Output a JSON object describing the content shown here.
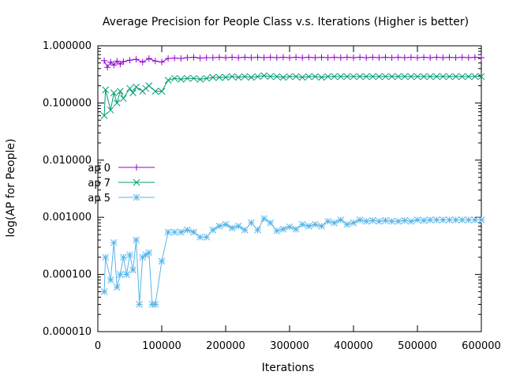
{
  "chart_data": {
    "type": "line",
    "title": "Average Precision for People Class v.s. Iterations (Higher is better)",
    "xlabel": "Iterations",
    "ylabel": "log(AP for People)",
    "xlim": [
      0,
      600000
    ],
    "ylim": [
      1e-05,
      1.0
    ],
    "yscale": "log",
    "x_ticks": [
      0,
      100000,
      200000,
      300000,
      400000,
      500000,
      600000
    ],
    "x_tick_labels": [
      "0",
      "100000",
      "200000",
      "300000",
      "400000",
      "500000",
      "600000"
    ],
    "y_ticks": [
      1e-05,
      0.0001,
      0.001,
      0.01,
      0.1,
      1.0
    ],
    "y_tick_labels": [
      "0.000010",
      "0.000100",
      "0.001000",
      "0.010000",
      "0.100000",
      "1.000000"
    ],
    "grid": false,
    "legend_position": "left-middle",
    "series": [
      {
        "name": "ap 0",
        "color": "#9400d3",
        "marker": "plus",
        "x": [
          10000,
          15000,
          20000,
          25000,
          30000,
          35000,
          40000,
          50000,
          60000,
          70000,
          80000,
          90000,
          100000,
          110000,
          120000,
          130000,
          140000,
          150000,
          160000,
          170000,
          180000,
          190000,
          200000,
          210000,
          220000,
          230000,
          240000,
          250000,
          260000,
          270000,
          280000,
          290000,
          300000,
          310000,
          320000,
          330000,
          340000,
          350000,
          360000,
          370000,
          380000,
          390000,
          400000,
          410000,
          420000,
          430000,
          440000,
          450000,
          460000,
          470000,
          480000,
          490000,
          500000,
          510000,
          520000,
          530000,
          540000,
          550000,
          560000,
          570000,
          580000,
          590000,
          600000
        ],
        "y": [
          0.55,
          0.42,
          0.52,
          0.46,
          0.54,
          0.48,
          0.53,
          0.56,
          0.58,
          0.52,
          0.6,
          0.54,
          0.52,
          0.6,
          0.61,
          0.6,
          0.62,
          0.63,
          0.61,
          0.62,
          0.62,
          0.63,
          0.62,
          0.63,
          0.62,
          0.63,
          0.62,
          0.63,
          0.62,
          0.63,
          0.62,
          0.63,
          0.62,
          0.63,
          0.62,
          0.63,
          0.62,
          0.63,
          0.62,
          0.63,
          0.62,
          0.63,
          0.62,
          0.63,
          0.62,
          0.63,
          0.62,
          0.63,
          0.62,
          0.63,
          0.62,
          0.63,
          0.62,
          0.63,
          0.62,
          0.63,
          0.62,
          0.63,
          0.62,
          0.63,
          0.62,
          0.63,
          0.62
        ]
      },
      {
        "name": "ap 7",
        "color": "#009e73",
        "marker": "cross",
        "x": [
          10000,
          12000,
          20000,
          25000,
          30000,
          35000,
          40000,
          50000,
          55000,
          60000,
          70000,
          75000,
          80000,
          90000,
          100000,
          110000,
          120000,
          130000,
          140000,
          150000,
          160000,
          170000,
          180000,
          190000,
          200000,
          210000,
          220000,
          230000,
          240000,
          250000,
          260000,
          270000,
          280000,
          290000,
          300000,
          310000,
          320000,
          330000,
          340000,
          350000,
          360000,
          370000,
          380000,
          390000,
          400000,
          410000,
          420000,
          430000,
          440000,
          450000,
          460000,
          470000,
          480000,
          490000,
          500000,
          510000,
          520000,
          530000,
          540000,
          550000,
          560000,
          570000,
          580000,
          590000,
          600000
        ],
        "y": [
          0.06,
          0.17,
          0.075,
          0.15,
          0.1,
          0.16,
          0.12,
          0.18,
          0.15,
          0.19,
          0.16,
          0.18,
          0.2,
          0.16,
          0.16,
          0.25,
          0.27,
          0.26,
          0.27,
          0.27,
          0.26,
          0.27,
          0.28,
          0.28,
          0.28,
          0.29,
          0.28,
          0.29,
          0.28,
          0.29,
          0.3,
          0.29,
          0.29,
          0.28,
          0.29,
          0.29,
          0.28,
          0.29,
          0.29,
          0.28,
          0.29,
          0.29,
          0.29,
          0.29,
          0.29,
          0.29,
          0.29,
          0.29,
          0.29,
          0.29,
          0.29,
          0.29,
          0.29,
          0.29,
          0.29,
          0.29,
          0.29,
          0.29,
          0.29,
          0.29,
          0.29,
          0.29,
          0.29,
          0.29,
          0.29
        ]
      },
      {
        "name": "ap 5",
        "color": "#56b4e9",
        "marker": "star",
        "x": [
          10000,
          12000,
          20000,
          25000,
          30000,
          35000,
          40000,
          45000,
          50000,
          55000,
          60000,
          65000,
          70000,
          75000,
          80000,
          85000,
          90000,
          100000,
          110000,
          120000,
          130000,
          140000,
          150000,
          160000,
          170000,
          180000,
          190000,
          200000,
          210000,
          220000,
          230000,
          240000,
          250000,
          260000,
          270000,
          280000,
          290000,
          300000,
          310000,
          320000,
          330000,
          340000,
          350000,
          360000,
          370000,
          380000,
          390000,
          400000,
          410000,
          420000,
          430000,
          440000,
          450000,
          460000,
          470000,
          480000,
          490000,
          500000,
          510000,
          520000,
          530000,
          540000,
          550000,
          560000,
          570000,
          580000,
          590000,
          600000
        ],
        "y": [
          5e-05,
          0.0002,
          8e-05,
          0.00036,
          6e-05,
          0.0001,
          0.0002,
          0.0001,
          0.00022,
          0.00012,
          0.0004,
          3e-05,
          0.0002,
          0.00022,
          0.00024,
          3e-05,
          3e-05,
          0.00017,
          0.00055,
          0.00055,
          0.00055,
          0.0006,
          0.00055,
          0.00045,
          0.00045,
          0.0006,
          0.0007,
          0.00075,
          0.00065,
          0.0007,
          0.0006,
          0.0008,
          0.0006,
          0.00095,
          0.0008,
          0.00058,
          0.00062,
          0.00068,
          0.00062,
          0.00075,
          0.0007,
          0.00075,
          0.0007,
          0.00085,
          0.0008,
          0.0009,
          0.00075,
          0.0008,
          0.0009,
          0.00085,
          0.00088,
          0.00085,
          0.00088,
          0.00085,
          0.00085,
          0.00088,
          0.00085,
          0.0009,
          0.00088,
          0.0009,
          0.0009,
          0.0009,
          0.0009,
          0.0009,
          0.0009,
          0.0009,
          0.0009,
          0.0009
        ]
      }
    ]
  }
}
